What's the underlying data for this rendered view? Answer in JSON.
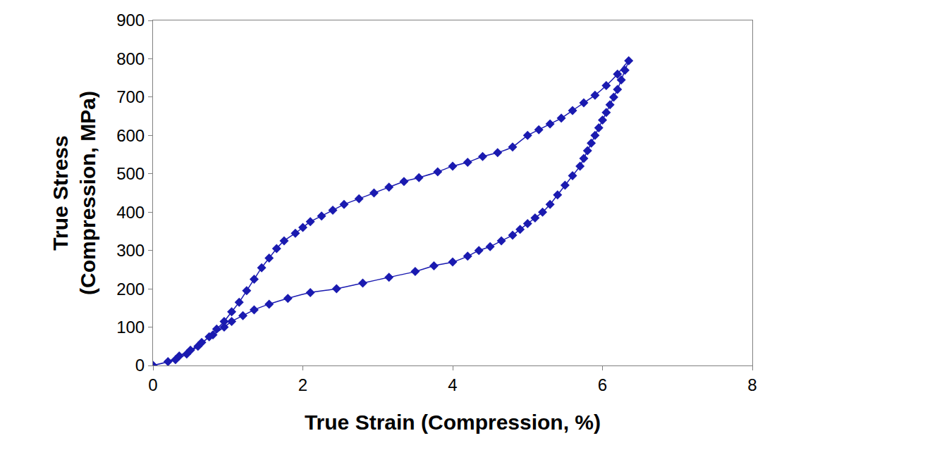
{
  "chart_data": {
    "type": "scatter",
    "xlabel": "True Strain (Compression, %)",
    "ylabel": "True Stress (Compression, MPa)",
    "x": [
      0,
      0.3,
      0.45,
      0.6,
      0.75,
      0.85,
      0.95,
      1.05,
      1.15,
      1.25,
      1.35,
      1.45,
      1.55,
      1.65,
      1.75,
      1.9,
      2.0,
      2.1,
      2.25,
      2.4,
      2.55,
      2.75,
      2.95,
      3.15,
      3.35,
      3.55,
      3.8,
      4.0,
      4.2,
      4.4,
      4.6,
      4.8,
      5.0,
      5.15,
      5.3,
      5.45,
      5.6,
      5.75,
      5.9,
      6.05,
      6.2,
      6.35,
      6.3,
      6.25,
      6.2,
      6.15,
      6.1,
      6.05,
      6.0,
      5.95,
      5.9,
      5.85,
      5.8,
      5.75,
      5.7,
      5.6,
      5.5,
      5.4,
      5.3,
      5.2,
      5.1,
      5.0,
      4.9,
      4.8,
      4.65,
      4.5,
      4.35,
      4.2,
      4.0,
      3.75,
      3.5,
      3.15,
      2.8,
      2.45,
      2.1,
      1.8,
      1.55,
      1.35,
      1.2,
      1.05,
      0.95,
      0.8,
      0.65,
      0.5,
      0.35,
      0.2,
      0
    ],
    "values": [
      0,
      15,
      30,
      50,
      75,
      95,
      115,
      140,
      165,
      195,
      225,
      255,
      280,
      305,
      325,
      345,
      360,
      375,
      390,
      405,
      420,
      435,
      450,
      465,
      480,
      490,
      505,
      520,
      530,
      545,
      555,
      570,
      600,
      615,
      630,
      645,
      665,
      685,
      705,
      730,
      760,
      795,
      770,
      745,
      720,
      700,
      680,
      660,
      640,
      620,
      600,
      580,
      560,
      540,
      520,
      495,
      470,
      445,
      420,
      400,
      385,
      370,
      355,
      340,
      325,
      310,
      300,
      285,
      270,
      260,
      245,
      230,
      215,
      200,
      190,
      175,
      160,
      145,
      130,
      115,
      100,
      80,
      60,
      40,
      25,
      10,
      0
    ],
    "color": "#1a1ab0",
    "marker": "diamond",
    "line_style": "solid",
    "xlim": [
      0,
      8
    ],
    "xticks": [
      0,
      2,
      4,
      6,
      8
    ],
    "ylim": [
      0,
      900
    ],
    "yticks": [
      0,
      100,
      200,
      300,
      400,
      500,
      600,
      700,
      800,
      900
    ],
    "grid": false
  }
}
